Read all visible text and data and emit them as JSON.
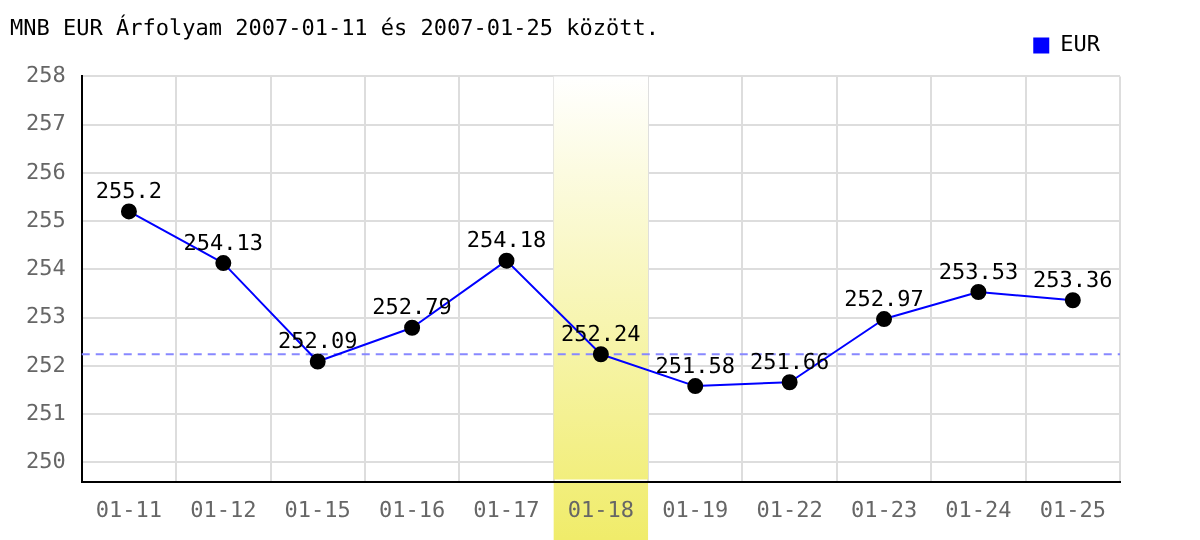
{
  "chart_data": {
    "type": "line",
    "title": "MNB EUR Árfolyam 2007-01-11 és 2007-01-25 között.",
    "categories": [
      "01-11",
      "01-12",
      "01-15",
      "01-16",
      "01-17",
      "01-18",
      "01-19",
      "01-22",
      "01-23",
      "01-24",
      "01-25"
    ],
    "series": [
      {
        "name": "EUR",
        "color": "#0000ff",
        "values": [
          255.2,
          254.13,
          252.09,
          252.79,
          254.18,
          252.24,
          251.58,
          251.66,
          252.97,
          253.53,
          253.36
        ]
      }
    ],
    "ylim": [
      249.6,
      258
    ],
    "yticks": [
      250,
      251,
      252,
      253,
      254,
      255,
      256,
      257,
      258
    ],
    "grid": true,
    "legend": "top right",
    "marker": "circle",
    "line_style": "solid",
    "data_labels": true,
    "ref_lines": [
      {
        "axis": "y",
        "value": 252.24,
        "color": "#8888ff",
        "line_style": "dashed"
      }
    ],
    "bands": [
      {
        "axis": "x",
        "from": "01-18",
        "to": "01-18",
        "color": "#f0ec6a"
      }
    ]
  }
}
